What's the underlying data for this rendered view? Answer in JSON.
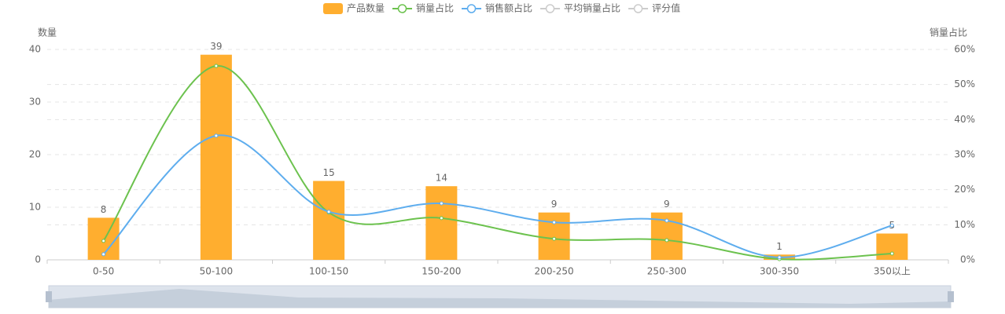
{
  "chart_data": {
    "type": "bar-line",
    "ylabel": "数量",
    "y2label": "销量占比",
    "categories": [
      "0-50",
      "50-100",
      "100-150",
      "150-200",
      "200-250",
      "250-300",
      "300-350",
      "350以上"
    ],
    "series": [
      {
        "name": "产品数量",
        "type": "bar",
        "color": "#ffae2f",
        "values": [
          8,
          39,
          15,
          14,
          9,
          9,
          1,
          5
        ]
      },
      {
        "name": "销量占比",
        "type": "line",
        "axis": "y2",
        "color": "#6cc24e",
        "values": [
          5.4,
          55.3,
          13.5,
          11.9,
          6.0,
          5.6,
          0.2,
          1.8
        ]
      },
      {
        "name": "销售额占比",
        "type": "line",
        "axis": "y2",
        "color": "#5eadee",
        "values": [
          1.6,
          35.4,
          13.7,
          16.1,
          10.7,
          11.2,
          0.7,
          9.8
        ]
      }
    ],
    "legend_inactive": [
      "平均销量占比",
      "评分值"
    ],
    "ylim": [
      0,
      40
    ],
    "yticks": [
      0,
      10,
      20,
      30,
      40
    ],
    "y2lim": [
      0,
      60
    ],
    "y2ticks": [
      {
        "value": 0,
        "label": "0%"
      },
      {
        "value": 10,
        "label": "10%"
      },
      {
        "value": 20,
        "label": "20%"
      },
      {
        "value": 30,
        "label": "30%"
      },
      {
        "value": 40,
        "label": "40%"
      },
      {
        "value": 50,
        "label": "50%"
      },
      {
        "value": 60,
        "label": "60%"
      }
    ],
    "grid": true
  }
}
